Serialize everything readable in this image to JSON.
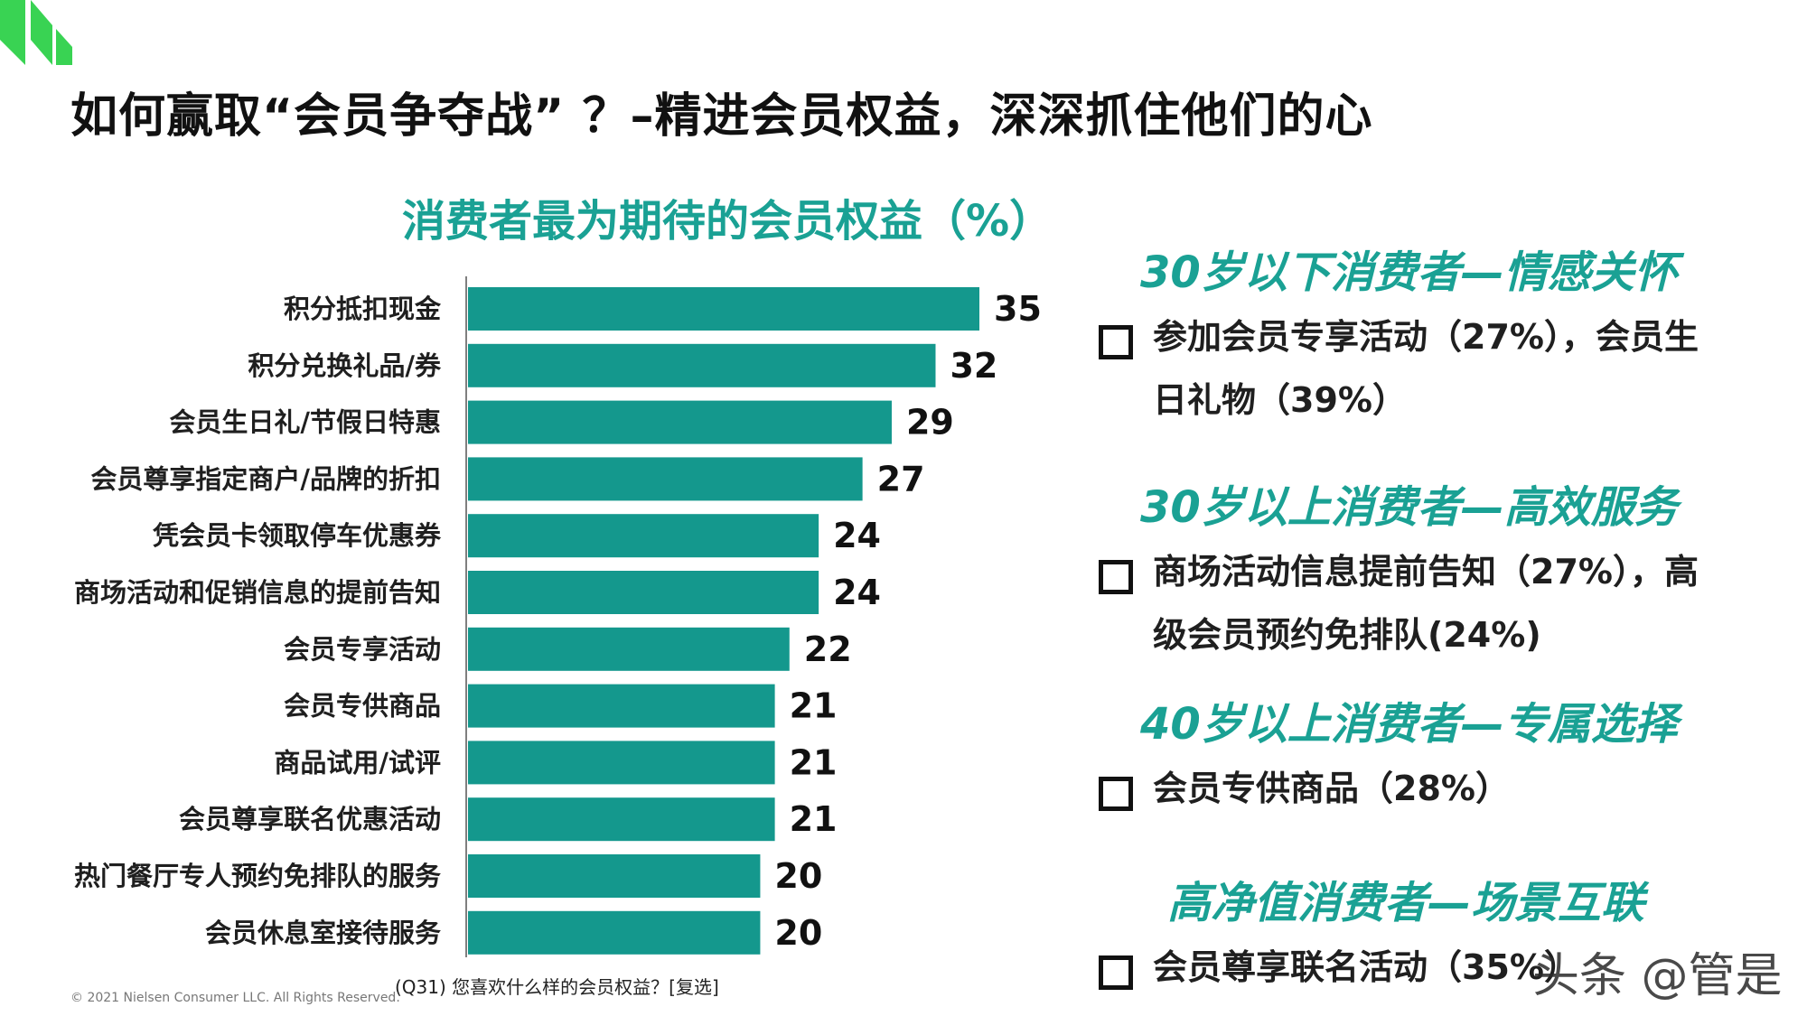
{
  "page": {
    "title": "如何赢取“会员争夺战” ？–精进会员权益，深深抓住他们的心",
    "footnote": "(Q31) 您喜欢什么样的会员权益？[复选]",
    "copyright": "© 2021 Nielsen Consumer LLC. All Rights Reserved.",
    "watermark": "头条 @管是"
  },
  "colors": {
    "bar": "#14988d",
    "accent": "#1aa194",
    "logo": "#39d353"
  },
  "chart_data": {
    "type": "bar",
    "orientation": "horizontal",
    "title": "消费者最为期待的会员权益（%）",
    "categories": [
      "积分抵扣现金",
      "积分兑换礼品/券",
      "会员生日礼/节假日特惠",
      "会员尊享指定商户/品牌的折扣",
      "凭会员卡领取停车优惠券",
      "商场活动和促销信息的提前告知",
      "会员专享活动",
      "会员专供商品",
      "商品试用/试评",
      "会员尊享联名优惠活动",
      "热门餐厅专人预约免排队的服务",
      "会员休息室接待服务"
    ],
    "values": [
      35,
      32,
      29,
      27,
      24,
      24,
      22,
      21,
      21,
      21,
      20,
      20
    ],
    "xlim": [
      0,
      35
    ],
    "grid": false,
    "legend": "none"
  },
  "segments": [
    {
      "title": "30岁以下消费者—情感关怀",
      "items": [
        "参加会员专享活动（27%），会员生日礼物（39%）"
      ]
    },
    {
      "title": "30岁以上消费者—高效服务",
      "items": [
        "商场活动信息提前告知（27%），高级会员预约免排队(24%)"
      ]
    },
    {
      "title": "40岁以上消费者—专属选择",
      "items": [
        "会员专供商品（28%）"
      ]
    },
    {
      "title": "高净值消费者—场景互联",
      "items": [
        "会员尊享联名活动（35%）"
      ]
    }
  ]
}
